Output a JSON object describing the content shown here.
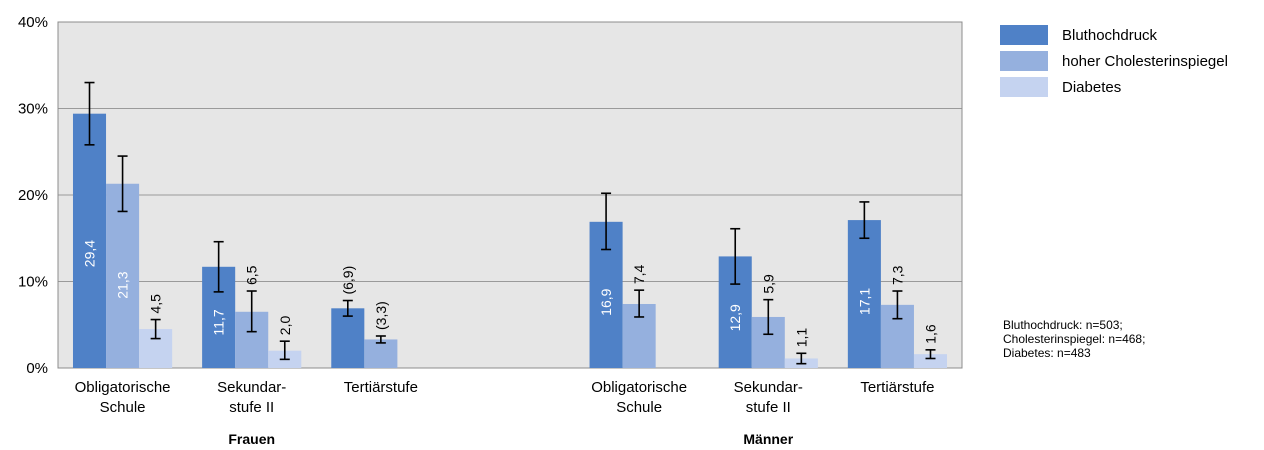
{
  "chart_data": {
    "type": "bar",
    "title": "",
    "xlabel": "",
    "ylabel": "",
    "ylim": [
      0,
      40
    ],
    "yticks": [
      "0%",
      "10%",
      "20%",
      "30%",
      "40%"
    ],
    "grid": true,
    "legend_position": "right",
    "groups": [
      {
        "label": "Frauen",
        "categories": [
          {
            "label_lines": [
              "Obligatorische",
              "Schule"
            ],
            "values": [
              29.4,
              21.3,
              4.5
            ],
            "labels": [
              "29,4",
              "21,3",
              "4,5"
            ],
            "err_low": [
              25.8,
              18.1,
              3.4
            ],
            "err_high": [
              33.0,
              24.5,
              5.6
            ]
          },
          {
            "label_lines": [
              "Sekundar-",
              "stufe II"
            ],
            "values": [
              11.7,
              6.5,
              2.0
            ],
            "labels": [
              "11,7",
              "6,5",
              "2,0"
            ],
            "err_low": [
              8.8,
              4.2,
              1.0
            ],
            "err_high": [
              14.6,
              8.9,
              3.1
            ]
          },
          {
            "label_lines": [
              "Tertiärstufe"
            ],
            "values": [
              6.9,
              3.3,
              null
            ],
            "labels": [
              "(6,9)",
              "(3,3)",
              ""
            ],
            "err_low": [
              6.0,
              2.9,
              null
            ],
            "err_high": [
              7.8,
              3.7,
              null
            ]
          }
        ]
      },
      {
        "label": "Männer",
        "categories": [
          {
            "label_lines": [
              "Obligatorische",
              "Schule"
            ],
            "values": [
              16.9,
              7.4,
              null
            ],
            "labels": [
              "16,9",
              "7,4",
              ""
            ],
            "err_low": [
              13.7,
              5.9,
              null
            ],
            "err_high": [
              20.2,
              9.0,
              null
            ]
          },
          {
            "label_lines": [
              "Sekundar-",
              "stufe II"
            ],
            "values": [
              12.9,
              5.9,
              1.1
            ],
            "labels": [
              "12,9",
              "5,9",
              "1,1"
            ],
            "err_low": [
              9.7,
              3.9,
              0.5
            ],
            "err_high": [
              16.1,
              7.9,
              1.7
            ]
          },
          {
            "label_lines": [
              "Tertiärstufe"
            ],
            "values": [
              17.1,
              7.3,
              1.6
            ],
            "labels": [
              "17,1",
              "7,3",
              "1,6"
            ],
            "err_low": [
              15.0,
              5.7,
              1.1
            ],
            "err_high": [
              19.2,
              8.9,
              2.1
            ]
          }
        ]
      }
    ],
    "series": [
      {
        "name": "Bluthochdruck",
        "color": "#4f81c7"
      },
      {
        "name": "hoher Cholesterinspiegel",
        "color": "#95b0de"
      },
      {
        "name": "Diabetes",
        "color": "#c5d3f0"
      }
    ],
    "note_lines": [
      "Bluthochdruck: n=503;",
      "Cholesterinspiegel: n=468;",
      "Diabetes: n=483"
    ]
  }
}
